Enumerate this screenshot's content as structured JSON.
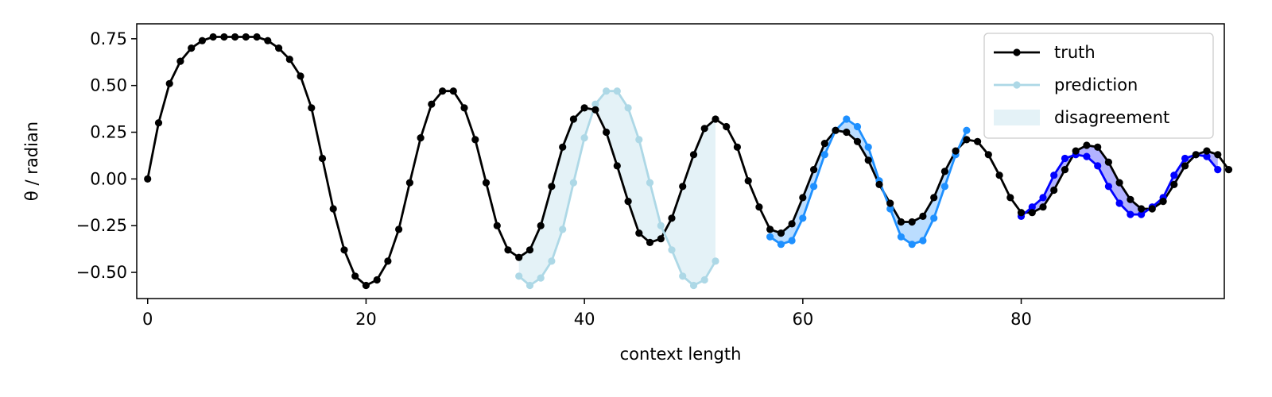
{
  "chart_data": {
    "type": "line",
    "xlabel": "context length",
    "ylabel": "θ / radian",
    "xlim": [
      -1,
      98.6
    ],
    "ylim": [
      -0.64,
      0.83
    ],
    "xticks": [
      0,
      20,
      40,
      60,
      80
    ],
    "yticks": [
      -0.5,
      -0.25,
      0.0,
      0.25,
      0.5,
      0.75
    ],
    "xtick_labels": [
      "0",
      "20",
      "40",
      "60",
      "80"
    ],
    "ytick_labels": [
      "−0.50",
      "−0.25",
      "0.00",
      "0.25",
      "0.50",
      "0.75"
    ],
    "grid": false,
    "legend_position": "top-right",
    "legend": [
      {
        "label": "truth",
        "kind": "line",
        "color": "#000000"
      },
      {
        "label": "prediction",
        "kind": "line",
        "color": "#add8e6"
      },
      {
        "label": "disagreement",
        "kind": "patch",
        "color": "#add8e6"
      }
    ],
    "truth": {
      "x0": 0,
      "values": [
        0.0,
        0.3,
        0.51,
        0.63,
        0.7,
        0.74,
        0.76,
        0.76,
        0.76,
        0.76,
        0.76,
        0.74,
        0.7,
        0.64,
        0.55,
        0.38,
        0.11,
        -0.16,
        -0.38,
        -0.52,
        -0.57,
        -0.54,
        -0.44,
        -0.27,
        -0.02,
        0.22,
        0.4,
        0.47,
        0.47,
        0.38,
        0.21,
        -0.02,
        -0.25,
        -0.38,
        -0.42,
        -0.38,
        -0.25,
        -0.04,
        0.17,
        0.32,
        0.38,
        0.37,
        0.25,
        0.07,
        -0.12,
        -0.29,
        -0.34,
        -0.32,
        -0.21,
        -0.04,
        0.13,
        0.27,
        0.32,
        0.28,
        0.17,
        -0.01,
        -0.15,
        -0.27,
        -0.29,
        -0.24,
        -0.1,
        0.05,
        0.19,
        0.26,
        0.25,
        0.2,
        0.1,
        -0.03,
        -0.13,
        -0.23,
        -0.23,
        -0.2,
        -0.1,
        0.04,
        0.15,
        0.21,
        0.2,
        0.13,
        0.02,
        -0.1,
        -0.18,
        -0.18,
        -0.15,
        -0.06,
        0.05,
        0.15,
        0.18,
        0.17,
        0.09,
        -0.02,
        -0.11,
        -0.16,
        -0.16,
        -0.12,
        -0.03,
        0.07,
        0.13,
        0.15,
        0.13,
        0.05
      ]
    },
    "series": [
      {
        "x0": 34,
        "color": "#add8e6",
        "values": [
          -0.52,
          -0.57,
          -0.53,
          -0.44,
          -0.27,
          -0.02,
          0.22,
          0.4,
          0.47,
          0.47,
          0.38,
          0.21,
          -0.02,
          -0.25,
          -0.38,
          -0.52,
          -0.57,
          -0.54,
          -0.44
        ]
      },
      {
        "x0": 57,
        "color": "#1e90ff",
        "values": [
          -0.31,
          -0.35,
          -0.33,
          -0.21,
          -0.04,
          0.13,
          0.26,
          0.32,
          0.28,
          0.17,
          -0.01,
          -0.16,
          -0.31,
          -0.35,
          -0.33,
          -0.21,
          -0.04,
          0.13,
          0.26
        ]
      },
      {
        "x0": 80,
        "color": "#0000ff",
        "values": [
          -0.2,
          -0.15,
          -0.1,
          0.02,
          0.11,
          0.13,
          0.12,
          0.07,
          -0.04,
          -0.13,
          -0.19,
          -0.19,
          -0.15,
          -0.1,
          0.02,
          0.11,
          0.13,
          0.12,
          0.05
        ]
      }
    ]
  }
}
